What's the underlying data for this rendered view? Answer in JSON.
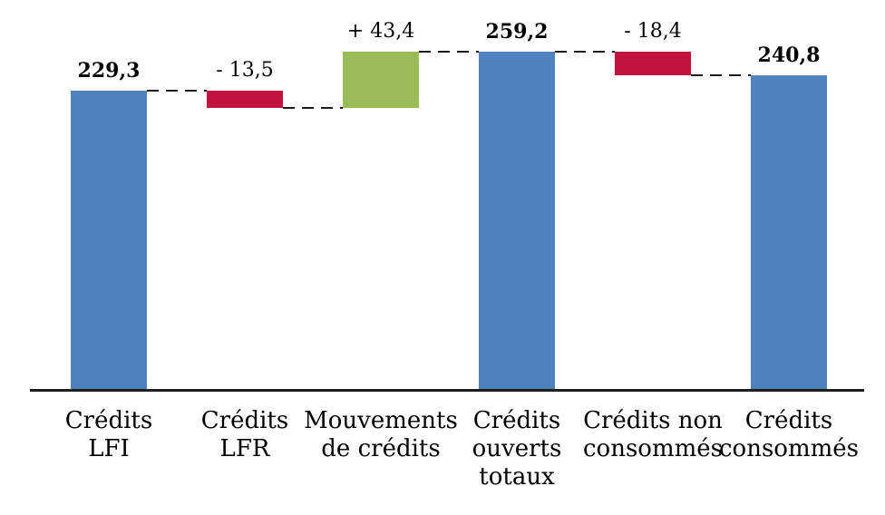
{
  "chart": {
    "background_color": "#FFFFFF",
    "axis_color": "#1F1F1F",
    "connector_color": "#1A1A1A",
    "text_color": "#000000"
  },
  "chart_data": {
    "type": "bar",
    "subtype": "waterfall",
    "title": "",
    "xlabel": "",
    "ylabel": "",
    "ylim": [
      0,
      300
    ],
    "grid": false,
    "legend": false,
    "categories": [
      "Crédits\nLFI",
      "Crédits\nLFR",
      "Mouvements\nde crédits",
      "Crédits\nouverts\ntotaux",
      "Crédits non\nconsommés",
      "Crédits\nconsommés"
    ],
    "bars": [
      {
        "name": "credits-lfi",
        "label": "229,3",
        "value": 229.3,
        "start": 0,
        "end": 229.3,
        "role": "total",
        "color_key": "blue",
        "bold_label": true
      },
      {
        "name": "credits-lfr",
        "label": "- 13,5",
        "value": -13.5,
        "start": 229.3,
        "end": 215.8,
        "role": "decrease",
        "color_key": "red",
        "bold_label": false
      },
      {
        "name": "mouvements-de-credits",
        "label": "+ 43,4",
        "value": 43.4,
        "start": 215.8,
        "end": 259.2,
        "role": "increase",
        "color_key": "green",
        "bold_label": false
      },
      {
        "name": "credits-ouverts-totaux",
        "label": "259,2",
        "value": 259.2,
        "start": 0,
        "end": 259.2,
        "role": "total",
        "color_key": "blue",
        "bold_label": true
      },
      {
        "name": "credits-non-consommes",
        "label": "- 18,4",
        "value": -18.4,
        "start": 259.2,
        "end": 240.8,
        "role": "decrease",
        "color_key": "red",
        "bold_label": false
      },
      {
        "name": "credits-consommes",
        "label": "240,8",
        "value": 240.8,
        "start": 0,
        "end": 240.8,
        "role": "total",
        "color_key": "blue",
        "bold_label": true
      }
    ],
    "connector_levels": [
      229.3,
      215.8,
      259.2,
      259.2,
      240.8
    ],
    "colors": {
      "blue": "#4F81BD",
      "red": "#C0123C",
      "green": "#9BBB59"
    }
  }
}
